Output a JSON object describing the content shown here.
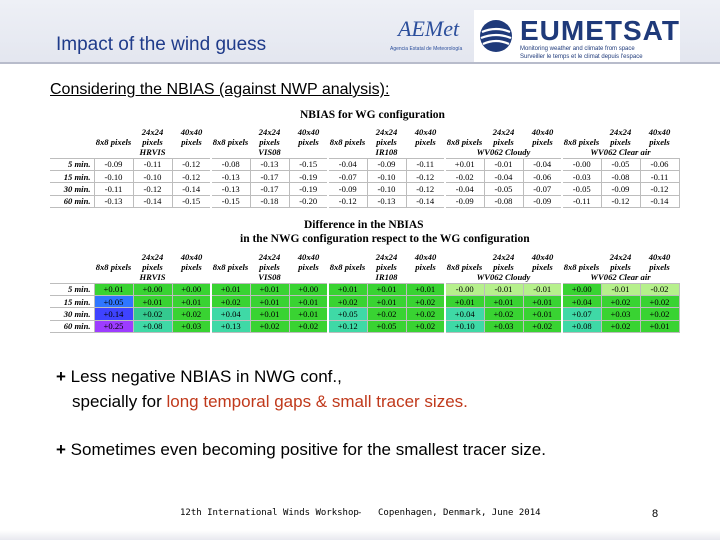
{
  "header": {
    "title": "Impact of the wind guess",
    "logo_aemet": {
      "text": "AEMet",
      "subtitle": "Agencia Estatal de Meteorología"
    },
    "logo_eumetsat": {
      "text": "EUMETSAT",
      "tagline_1": "Monitoring weather and climate from space",
      "tagline_2": "Surveiller le temps et le climat depuis l'espace"
    }
  },
  "subhead": "Considering the NBIAS (against NWP analysis):",
  "table1": {
    "title": "NBIAS for WG configuration",
    "col_headers": [
      "8x8 pixels",
      "24x24 pixels",
      "40x40 pixels",
      "8x8 pixels",
      "24x24 pixels",
      "40x40 pixels",
      "8x8 pixels",
      "24x24 pixels",
      "40x40 pixels",
      "8x8 pixels",
      "24x24 pixels",
      "40x40 pixels",
      "8x8 pixels",
      "24x24 pixels",
      "40x40 pixels"
    ],
    "groups": [
      "HRVIS",
      "VIS08",
      "IR108",
      "WV062 Cloudy",
      "WV062 Clear air"
    ],
    "rows": [
      {
        "label": "5 min.",
        "values": [
          "-0.09",
          "-0.11",
          "-0.12",
          "-0.08",
          "-0.13",
          "-0.15",
          "-0.04",
          "-0.09",
          "-0.11",
          "+0.01",
          "-0.01",
          "-0.04",
          "-0.00",
          "-0.05",
          "-0.06"
        ]
      },
      {
        "label": "15 min.",
        "values": [
          "-0.10",
          "-0.10",
          "-0.12",
          "-0.13",
          "-0.17",
          "-0.19",
          "-0.07",
          "-0.10",
          "-0.12",
          "-0.02",
          "-0.04",
          "-0.06",
          "-0.03",
          "-0.08",
          "-0.11"
        ]
      },
      {
        "label": "30 min.",
        "values": [
          "-0.11",
          "-0.12",
          "-0.14",
          "-0.13",
          "-0.17",
          "-0.19",
          "-0.09",
          "-0.10",
          "-0.12",
          "-0.04",
          "-0.05",
          "-0.07",
          "-0.05",
          "-0.09",
          "-0.12"
        ]
      },
      {
        "label": "60 min.",
        "values": [
          "-0.13",
          "-0.14",
          "-0.15",
          "-0.15",
          "-0.18",
          "-0.20",
          "-0.12",
          "-0.13",
          "-0.14",
          "-0.09",
          "-0.08",
          "-0.09",
          "-0.11",
          "-0.12",
          "-0.14"
        ]
      }
    ]
  },
  "table2": {
    "title_line1": "Difference in the NBIAS",
    "title_line2": "in the NWG configuration respect to the WG configuration",
    "col_headers": [
      "8x8 pixels",
      "24x24 pixels",
      "40x40 pixels",
      "8x8 pixels",
      "24x24 pixels",
      "40x40 pixels",
      "8x8 pixels",
      "24x24 pixels",
      "40x40 pixels",
      "8x8 pixels",
      "24x24 pixels",
      "40x40 pixels",
      "8x8 pixels",
      "24x24 pixels",
      "40x40 pixels"
    ],
    "groups": [
      "HRVIS",
      "VIS08",
      "IR108",
      "WV062 Cloudy",
      "WV062 Clear air"
    ],
    "rows": [
      {
        "label": "5 min.",
        "values": [
          "+0.01",
          "+0.00",
          "+0.00",
          "+0.01",
          "+0.01",
          "+0.00",
          "+0.01",
          "+0.01",
          "+0.01",
          "-0.00",
          "-0.01",
          "-0.01",
          "+0.00",
          "-0.01",
          "-0.02"
        ]
      },
      {
        "label": "15 min.",
        "values": [
          "+0.05",
          "+0.01",
          "+0.01",
          "+0.02",
          "+0.01",
          "+0.01",
          "+0.02",
          "+0.01",
          "+0.02",
          "+0.01",
          "+0.01",
          "+0.01",
          "+0.04",
          "+0.02",
          "+0.02"
        ]
      },
      {
        "label": "30 min.",
        "values": [
          "+0.14",
          "+0.02",
          "+0.02",
          "+0.04",
          "+0.01",
          "+0.01",
          "+0.05",
          "+0.02",
          "+0.02",
          "+0.04",
          "+0.02",
          "+0.01",
          "+0.07",
          "+0.03",
          "+0.02"
        ]
      },
      {
        "label": "60 min.",
        "values": [
          "+0.25",
          "+0.08",
          "+0.03",
          "+0.13",
          "+0.02",
          "+0.02",
          "+0.12",
          "+0.05",
          "+0.02",
          "+0.10",
          "+0.03",
          "+0.02",
          "+0.08",
          "+0.02",
          "+0.01"
        ]
      }
    ],
    "cell_colors": [
      [
        "#39d332",
        "#39d332",
        "#39d332",
        "#39d332",
        "#39d332",
        "#39d332",
        "#39d332",
        "#39d332",
        "#39d332",
        "#b6f08c",
        "#b6f08c",
        "#b6f08c",
        "#39d332",
        "#b6f08c",
        "#b6f08c"
      ],
      [
        "#2f76ff",
        "#39d332",
        "#39d332",
        "#39d332",
        "#39d332",
        "#39d332",
        "#39d332",
        "#39d332",
        "#39d332",
        "#39d332",
        "#39d332",
        "#39d332",
        "#39d332",
        "#39d332",
        "#39d332"
      ],
      [
        "#3f43ff",
        "#34c98f",
        "#39d332",
        "#3fd9a6",
        "#39d332",
        "#39d332",
        "#3fd9a6",
        "#39d332",
        "#39d332",
        "#3fd9a6",
        "#39d332",
        "#39d332",
        "#3fd9a6",
        "#39d332",
        "#39d332"
      ],
      [
        "#9d3cff",
        "#3fd9a6",
        "#39d332",
        "#3fd9a6",
        "#39d332",
        "#39d332",
        "#3fd9a6",
        "#39d332",
        "#39d332",
        "#3fd9a6",
        "#39d332",
        "#39d332",
        "#3fd9a6",
        "#39d332",
        "#39d332"
      ]
    ]
  },
  "bullets": [
    {
      "mark": "+",
      "text_a": "Less negative NBIAS in NWG conf.,",
      "text_b": "specially for ",
      "highlight": "long temporal gaps & small tracer sizes."
    },
    {
      "mark": "+",
      "text_a": "Sometimes even becoming positive for the smallest tracer size."
    }
  ],
  "footer": {
    "event": "12th International Winds Workshop",
    "sep": "-",
    "place": "Copenhagen, Denmark, June 2014",
    "page": "8"
  }
}
